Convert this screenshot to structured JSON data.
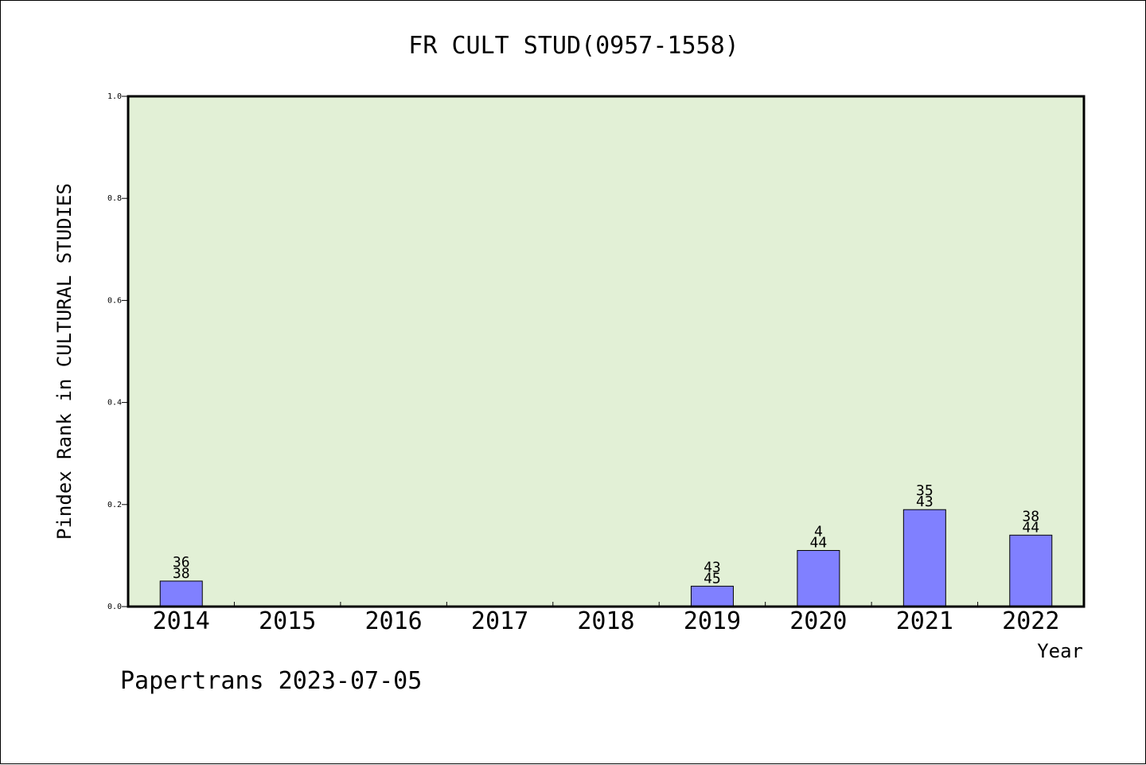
{
  "chart_data": {
    "type": "bar",
    "title": "FR CULT STUD(0957-1558)",
    "ylabel": "Pindex Rank in CULTURAL STUDIES",
    "xlabel": "Year",
    "categories": [
      "2014",
      "2015",
      "2016",
      "2017",
      "2018",
      "2019",
      "2020",
      "2021",
      "2022"
    ],
    "values": [
      0.05,
      0,
      0,
      0,
      0,
      0.04,
      0.11,
      0.19,
      0.14
    ],
    "bar_labels": [
      {
        "top": "36",
        "bottom": "38"
      },
      null,
      null,
      null,
      null,
      {
        "top": "43",
        "bottom": "45"
      },
      {
        "top": "4",
        "bottom": "44"
      },
      {
        "top": "35",
        "bottom": "43"
      },
      {
        "top": "38",
        "bottom": "44"
      }
    ],
    "ylim": [
      0,
      1.0
    ],
    "yticks": [
      0.0,
      0.2,
      0.4,
      0.6,
      0.8,
      1.0
    ],
    "ytick_labels": [
      "0.0",
      "0.2",
      "0.4",
      "0.6",
      "0.8",
      "1.0"
    ],
    "grid": false,
    "colors": {
      "plot_background": "#e2f0d6",
      "bar_fill": "#8080ff",
      "bar_stroke": "#000000"
    }
  },
  "footer": "Papertrans 2023-07-05"
}
